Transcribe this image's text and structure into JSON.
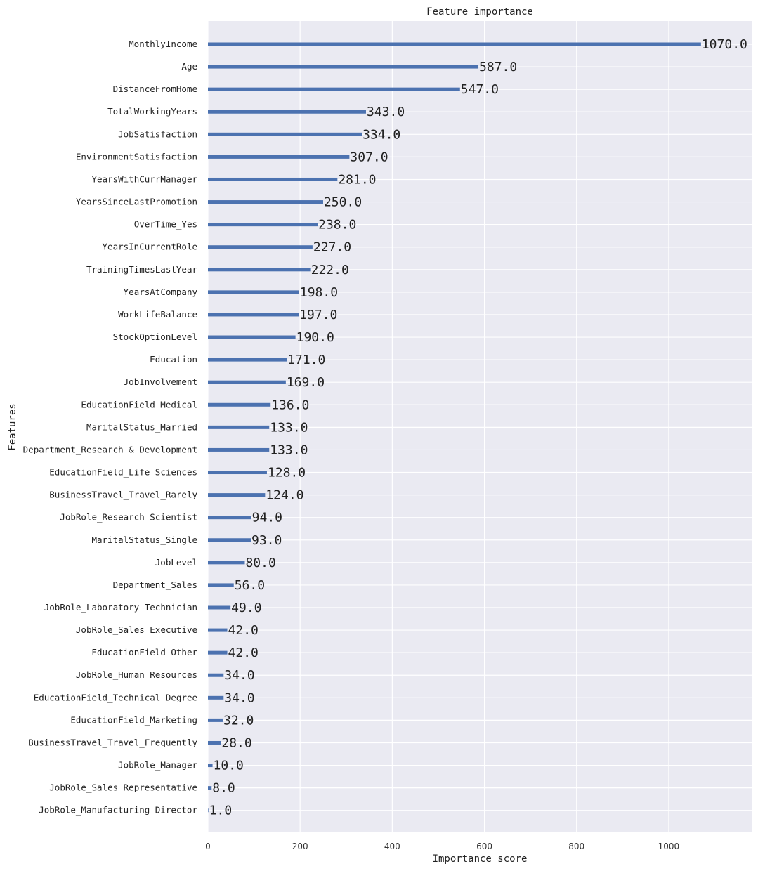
{
  "chart_data": {
    "type": "bar",
    "orientation": "horizontal",
    "title": "Feature importance",
    "xlabel": "Importance score",
    "ylabel": "Features",
    "xlim": [
      0,
      1180
    ],
    "xticks": [
      0,
      200,
      400,
      600,
      800,
      1000
    ],
    "grid": true,
    "bar_color": "#4c72b0",
    "background": "#eaeaf2",
    "categories": [
      "MonthlyIncome",
      "Age",
      "DistanceFromHome",
      "TotalWorkingYears",
      "JobSatisfaction",
      "EnvironmentSatisfaction",
      "YearsWithCurrManager",
      "YearsSinceLastPromotion",
      "OverTime_Yes",
      "YearsInCurrentRole",
      "TrainingTimesLastYear",
      "YearsAtCompany",
      "WorkLifeBalance",
      "StockOptionLevel",
      "Education",
      "JobInvolvement",
      "EducationField_Medical",
      "MaritalStatus_Married",
      "Department_Research & Development",
      "EducationField_Life Sciences",
      "BusinessTravel_Travel_Rarely",
      "JobRole_Research Scientist",
      "MaritalStatus_Single",
      "JobLevel",
      "Department_Sales",
      "JobRole_Laboratory Technician",
      "JobRole_Sales Executive",
      "EducationField_Other",
      "JobRole_Human Resources",
      "EducationField_Technical Degree",
      "EducationField_Marketing",
      "BusinessTravel_Travel_Frequently",
      "JobRole_Manager",
      "JobRole_Sales Representative",
      "JobRole_Manufacturing Director"
    ],
    "values": [
      1070,
      587,
      547,
      343,
      334,
      307,
      281,
      250,
      238,
      227,
      222,
      198,
      197,
      190,
      171,
      169,
      136,
      133,
      133,
      128,
      124,
      94,
      93,
      80,
      56,
      49,
      42,
      42,
      34,
      34,
      32,
      28,
      10,
      8,
      1
    ],
    "value_labels": [
      "1070.0",
      "587.0",
      "547.0",
      "343.0",
      "334.0",
      "307.0",
      "281.0",
      "250.0",
      "238.0",
      "227.0",
      "222.0",
      "198.0",
      "197.0",
      "190.0",
      "171.0",
      "169.0",
      "136.0",
      "133.0",
      "133.0",
      "128.0",
      "124.0",
      "94.0",
      "93.0",
      "80.0",
      "56.0",
      "49.0",
      "42.0",
      "42.0",
      "34.0",
      "34.0",
      "32.0",
      "28.0",
      "10.0",
      "8.0",
      "1.0"
    ]
  }
}
